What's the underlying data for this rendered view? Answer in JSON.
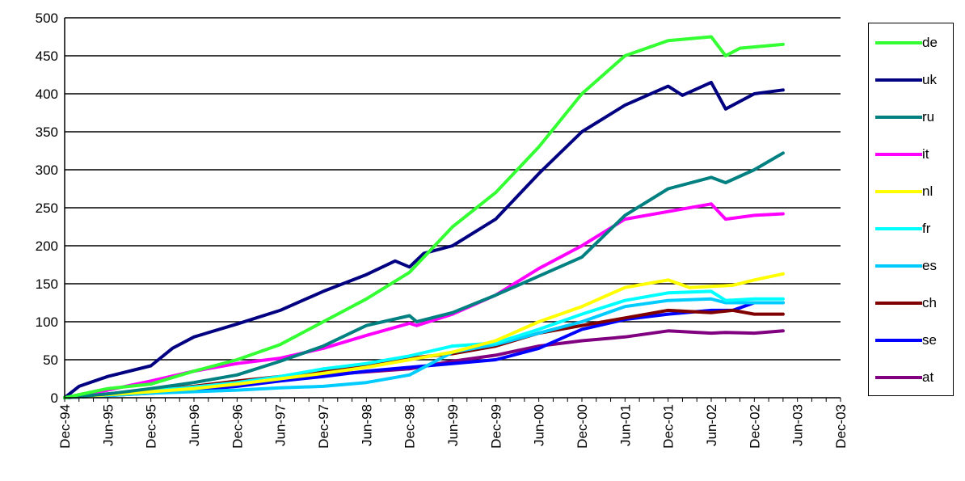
{
  "chart_data": {
    "type": "line",
    "title": "",
    "xlabel": "",
    "ylabel": "",
    "ylim": [
      0,
      500
    ],
    "yticks": [
      0,
      50,
      100,
      150,
      200,
      250,
      300,
      350,
      400,
      450,
      500
    ],
    "x_tick_labels": [
      "Dec-94",
      "Jun-95",
      "Dec-95",
      "Jun-96",
      "Dec-96",
      "Jun-97",
      "Dec-97",
      "Jun-98",
      "Dec-98",
      "Jun-99",
      "Dec-99",
      "Jun-00",
      "Dec-00",
      "Jun-01",
      "Dec-01",
      "Jun-02",
      "Dec-02",
      "Jun-03",
      "Dec-03"
    ],
    "x_range": [
      "1994-12",
      "2003-12"
    ],
    "grid": "horizontal",
    "legend_position": "right",
    "series": [
      {
        "name": "de",
        "color": "#33ff33",
        "points": [
          [
            "1994-12",
            0
          ],
          [
            "1995-06",
            12
          ],
          [
            "1995-12",
            18
          ],
          [
            "1996-06",
            35
          ],
          [
            "1996-12",
            50
          ],
          [
            "1997-06",
            70
          ],
          [
            "1997-12",
            100
          ],
          [
            "1998-06",
            130
          ],
          [
            "1998-12",
            165
          ],
          [
            "1999-06",
            225
          ],
          [
            "1999-12",
            270
          ],
          [
            "2000-06",
            330
          ],
          [
            "2000-12",
            400
          ],
          [
            "2001-06",
            450
          ],
          [
            "2001-12",
            470
          ],
          [
            "2002-06",
            475
          ],
          [
            "2002-08",
            450
          ],
          [
            "2002-10",
            460
          ],
          [
            "2003-04",
            465
          ]
        ]
      },
      {
        "name": "uk",
        "color": "#000080",
        "points": [
          [
            "1994-12",
            0
          ],
          [
            "1995-02",
            15
          ],
          [
            "1995-06",
            28
          ],
          [
            "1995-12",
            42
          ],
          [
            "1996-03",
            65
          ],
          [
            "1996-06",
            80
          ],
          [
            "1996-12",
            97
          ],
          [
            "1997-06",
            115
          ],
          [
            "1997-12",
            140
          ],
          [
            "1998-06",
            162
          ],
          [
            "1998-10",
            180
          ],
          [
            "1998-12",
            172
          ],
          [
            "1999-02",
            190
          ],
          [
            "1999-06",
            200
          ],
          [
            "1999-12",
            235
          ],
          [
            "2000-06",
            295
          ],
          [
            "2000-12",
            350
          ],
          [
            "2001-06",
            385
          ],
          [
            "2001-12",
            410
          ],
          [
            "2002-02",
            398
          ],
          [
            "2002-06",
            415
          ],
          [
            "2002-08",
            380
          ],
          [
            "2002-12",
            400
          ],
          [
            "2003-04",
            405
          ]
        ]
      },
      {
        "name": "ru",
        "color": "#008080",
        "points": [
          [
            "1994-12",
            0
          ],
          [
            "1995-06",
            5
          ],
          [
            "1995-12",
            12
          ],
          [
            "1996-06",
            20
          ],
          [
            "1996-12",
            30
          ],
          [
            "1997-06",
            48
          ],
          [
            "1997-12",
            68
          ],
          [
            "1998-06",
            95
          ],
          [
            "1998-12",
            108
          ],
          [
            "1999-01",
            100
          ],
          [
            "1999-06",
            112
          ],
          [
            "1999-12",
            135
          ],
          [
            "2000-06",
            160
          ],
          [
            "2000-12",
            185
          ],
          [
            "2001-06",
            240
          ],
          [
            "2001-12",
            275
          ],
          [
            "2002-06",
            290
          ],
          [
            "2002-08",
            283
          ],
          [
            "2002-12",
            300
          ],
          [
            "2003-04",
            322
          ]
        ]
      },
      {
        "name": "it",
        "color": "#ff00ff",
        "points": [
          [
            "1994-12",
            0
          ],
          [
            "1995-06",
            10
          ],
          [
            "1995-12",
            22
          ],
          [
            "1996-06",
            35
          ],
          [
            "1996-12",
            45
          ],
          [
            "1997-06",
            52
          ],
          [
            "1997-12",
            65
          ],
          [
            "1998-06",
            82
          ],
          [
            "1998-12",
            98
          ],
          [
            "1999-01",
            95
          ],
          [
            "1999-06",
            110
          ],
          [
            "1999-12",
            135
          ],
          [
            "2000-06",
            170
          ],
          [
            "2000-12",
            200
          ],
          [
            "2001-06",
            235
          ],
          [
            "2001-12",
            245
          ],
          [
            "2002-06",
            255
          ],
          [
            "2002-08",
            235
          ],
          [
            "2002-12",
            240
          ],
          [
            "2003-04",
            242
          ]
        ]
      },
      {
        "name": "nl",
        "color": "#ffff00",
        "points": [
          [
            "1994-12",
            0
          ],
          [
            "1995-06",
            4
          ],
          [
            "1995-12",
            8
          ],
          [
            "1996-06",
            12
          ],
          [
            "1996-12",
            18
          ],
          [
            "1997-06",
            25
          ],
          [
            "1997-12",
            32
          ],
          [
            "1998-06",
            40
          ],
          [
            "1998-12",
            50
          ],
          [
            "1999-06",
            60
          ],
          [
            "1999-12",
            75
          ],
          [
            "2000-06",
            100
          ],
          [
            "2000-12",
            120
          ],
          [
            "2001-06",
            145
          ],
          [
            "2001-12",
            155
          ],
          [
            "2002-03",
            145
          ],
          [
            "2002-09",
            148
          ],
          [
            "2002-12",
            155
          ],
          [
            "2003-04",
            163
          ]
        ]
      },
      {
        "name": "fr",
        "color": "#00ffff",
        "points": [
          [
            "1994-12",
            0
          ],
          [
            "1995-06",
            5
          ],
          [
            "1995-12",
            9
          ],
          [
            "1996-06",
            14
          ],
          [
            "1996-12",
            20
          ],
          [
            "1997-06",
            28
          ],
          [
            "1997-12",
            38
          ],
          [
            "1998-06",
            45
          ],
          [
            "1998-12",
            55
          ],
          [
            "1999-06",
            68
          ],
          [
            "1999-12",
            72
          ],
          [
            "2000-06",
            90
          ],
          [
            "2000-12",
            110
          ],
          [
            "2001-06",
            128
          ],
          [
            "2001-12",
            138
          ],
          [
            "2002-06",
            140
          ],
          [
            "2002-08",
            128
          ],
          [
            "2002-12",
            130
          ],
          [
            "2003-04",
            130
          ]
        ]
      },
      {
        "name": "es",
        "color": "#00ccff",
        "points": [
          [
            "1994-12",
            0
          ],
          [
            "1995-06",
            3
          ],
          [
            "1995-12",
            6
          ],
          [
            "1996-06",
            8
          ],
          [
            "1996-12",
            10
          ],
          [
            "1997-06",
            13
          ],
          [
            "1997-12",
            15
          ],
          [
            "1998-06",
            20
          ],
          [
            "1998-12",
            30
          ],
          [
            "1999-06",
            60
          ],
          [
            "1999-12",
            70
          ],
          [
            "2000-06",
            85
          ],
          [
            "2000-12",
            100
          ],
          [
            "2001-06",
            120
          ],
          [
            "2001-12",
            128
          ],
          [
            "2002-06",
            130
          ],
          [
            "2002-08",
            125
          ],
          [
            "2002-12",
            125
          ],
          [
            "2003-04",
            125
          ]
        ]
      },
      {
        "name": "ch",
        "color": "#800000",
        "points": [
          [
            "1994-12",
            0
          ],
          [
            "1995-06",
            5
          ],
          [
            "1995-12",
            10
          ],
          [
            "1996-06",
            15
          ],
          [
            "1996-12",
            22
          ],
          [
            "1997-06",
            28
          ],
          [
            "1997-12",
            35
          ],
          [
            "1998-06",
            42
          ],
          [
            "1998-12",
            52
          ],
          [
            "1999-06",
            58
          ],
          [
            "1999-12",
            68
          ],
          [
            "2000-06",
            85
          ],
          [
            "2000-12",
            95
          ],
          [
            "2001-06",
            105
          ],
          [
            "2001-12",
            115
          ],
          [
            "2002-06",
            112
          ],
          [
            "2002-09",
            115
          ],
          [
            "2002-12",
            110
          ],
          [
            "2003-04",
            110
          ]
        ]
      },
      {
        "name": "se",
        "color": "#0000ff",
        "points": [
          [
            "1994-12",
            0
          ],
          [
            "1995-06",
            3
          ],
          [
            "1995-12",
            6
          ],
          [
            "1996-06",
            10
          ],
          [
            "1996-12",
            15
          ],
          [
            "1997-06",
            22
          ],
          [
            "1997-12",
            28
          ],
          [
            "1998-06",
            35
          ],
          [
            "1998-12",
            40
          ],
          [
            "1999-06",
            45
          ],
          [
            "1999-12",
            50
          ],
          [
            "2000-06",
            65
          ],
          [
            "2000-12",
            90
          ],
          [
            "2001-06",
            103
          ],
          [
            "2001-12",
            110
          ],
          [
            "2002-06",
            115
          ],
          [
            "2002-09",
            115
          ],
          [
            "2002-12",
            125
          ],
          [
            "2003-04",
            125
          ]
        ]
      },
      {
        "name": "at",
        "color": "#800080",
        "points": [
          [
            "1994-12",
            0
          ],
          [
            "1995-06",
            3
          ],
          [
            "1995-12",
            8
          ],
          [
            "1996-06",
            12
          ],
          [
            "1996-12",
            18
          ],
          [
            "1997-06",
            24
          ],
          [
            "1997-12",
            30
          ],
          [
            "1998-06",
            34
          ],
          [
            "1998-12",
            38
          ],
          [
            "1999-06",
            48
          ],
          [
            "1999-12",
            56
          ],
          [
            "2000-06",
            68
          ],
          [
            "2000-12",
            75
          ],
          [
            "2001-06",
            80
          ],
          [
            "2001-12",
            88
          ],
          [
            "2002-06",
            85
          ],
          [
            "2002-08",
            86
          ],
          [
            "2002-12",
            85
          ],
          [
            "2003-04",
            88
          ]
        ]
      }
    ]
  }
}
